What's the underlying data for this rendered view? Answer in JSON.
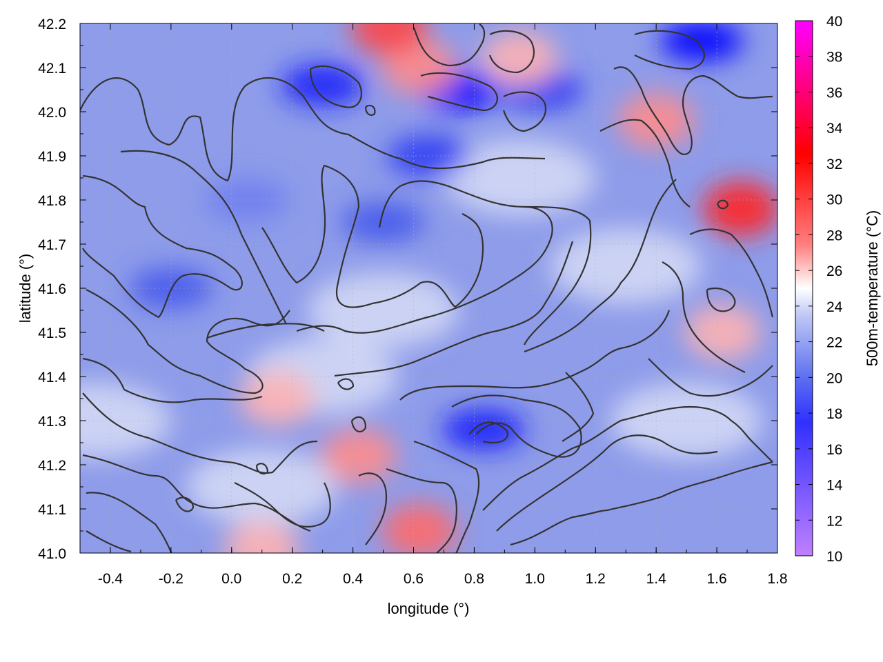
{
  "chart_data": {
    "type": "heatmap",
    "xlabel": "longitude (°)",
    "ylabel": "latitude (°)",
    "colorbar_label": "500m-temperature (°C)",
    "xlim": [
      -0.5,
      1.8
    ],
    "ylim": [
      41.0,
      42.2
    ],
    "x_ticks": [
      "-0.4",
      "-0.2",
      "0.0",
      "0.2",
      "0.4",
      "0.6",
      "0.8",
      "1.0",
      "1.2",
      "1.4",
      "1.6",
      "1.8"
    ],
    "y_ticks": [
      "41.0",
      "41.1",
      "41.2",
      "41.3",
      "41.4",
      "41.5",
      "41.6",
      "41.7",
      "41.8",
      "41.9",
      "42.0",
      "42.1",
      "42.2"
    ],
    "colorbar_range": [
      10,
      40
    ],
    "colorbar_ticks": [
      "10",
      "12",
      "14",
      "16",
      "18",
      "20",
      "22",
      "24",
      "26",
      "28",
      "30",
      "32",
      "34",
      "36",
      "38",
      "40"
    ],
    "colormap": [
      "#c080ff",
      "#0000ff",
      "#ffffff",
      "#ff0000",
      "#ff00ff"
    ],
    "grid": true,
    "contour_color": "#333333",
    "warm_regions": [
      {
        "lon": 0.62,
        "lat": 42.1,
        "temp": 28
      },
      {
        "lon": 0.95,
        "lat": 42.12,
        "temp": 27
      },
      {
        "lon": 1.4,
        "lat": 41.98,
        "temp": 28
      },
      {
        "lon": 1.68,
        "lat": 41.78,
        "temp": 31
      },
      {
        "lon": 1.62,
        "lat": 41.5,
        "temp": 27
      },
      {
        "lon": 0.62,
        "lat": 41.05,
        "temp": 29
      },
      {
        "lon": 0.42,
        "lat": 41.22,
        "temp": 28
      },
      {
        "lon": 0.15,
        "lat": 41.35,
        "temp": 27
      },
      {
        "lon": 0.52,
        "lat": 42.19,
        "temp": 30
      },
      {
        "lon": 0.1,
        "lat": 41.01,
        "temp": 27
      }
    ],
    "cool_regions": [
      {
        "lon": 0.3,
        "lat": 42.06,
        "temp": 18
      },
      {
        "lon": 0.75,
        "lat": 42.05,
        "temp": 17
      },
      {
        "lon": 1.02,
        "lat": 42.05,
        "temp": 19
      },
      {
        "lon": 1.55,
        "lat": 42.16,
        "temp": 17
      },
      {
        "lon": 0.65,
        "lat": 41.9,
        "temp": 19
      },
      {
        "lon": 0.83,
        "lat": 41.28,
        "temp": 18
      },
      {
        "lon": -0.2,
        "lat": 41.6,
        "temp": 20
      },
      {
        "lon": 0.05,
        "lat": 41.8,
        "temp": 21
      },
      {
        "lon": 0.5,
        "lat": 41.75,
        "temp": 20
      }
    ]
  }
}
